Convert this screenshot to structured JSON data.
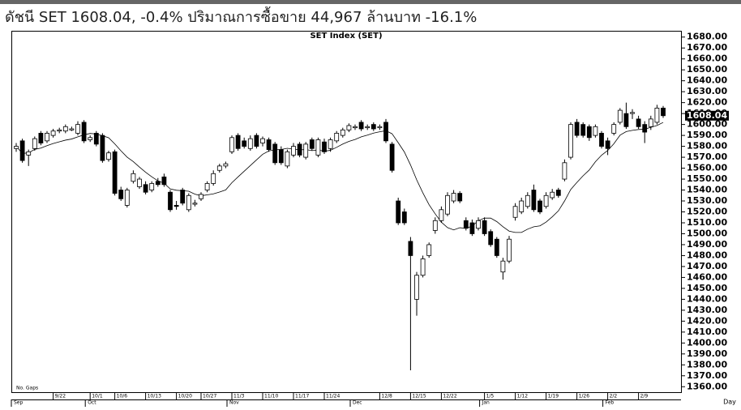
{
  "header": "ดัชนี SET 1608.04, -0.4%   ปริมาณการซื้อขาย 44,967 ล้านบาท -16.1%",
  "chart_data": {
    "type": "candlestick",
    "title": "SET Index (SET)",
    "ylim": [
      1355,
      1685
    ],
    "yticks": [
      {
        "value": 1680,
        "label": "1680.00"
      },
      {
        "value": 1670,
        "label": "1670.00"
      },
      {
        "value": 1660,
        "label": "1660.00"
      },
      {
        "value": 1650,
        "label": "1650.00"
      },
      {
        "value": 1640,
        "label": "1640.00"
      },
      {
        "value": 1630,
        "label": "1630.00"
      },
      {
        "value": 1620,
        "label": "1620.00"
      },
      {
        "value": 1610,
        "label": "1610.00"
      },
      {
        "value": 1600,
        "label": "1600.00"
      },
      {
        "value": 1590,
        "label": "1590.00"
      },
      {
        "value": 1580,
        "label": "1580.00"
      },
      {
        "value": 1570,
        "label": "1570.00"
      },
      {
        "value": 1560,
        "label": "1560.00"
      },
      {
        "value": 1550,
        "label": "1550.00"
      },
      {
        "value": 1540,
        "label": "1540.00"
      },
      {
        "value": 1530,
        "label": "1530.00"
      },
      {
        "value": 1520,
        "label": "1520.00"
      },
      {
        "value": 1510,
        "label": "1510.00"
      },
      {
        "value": 1500,
        "label": "1500.00"
      },
      {
        "value": 1490,
        "label": "1490.00"
      },
      {
        "value": 1480,
        "label": "1480.00"
      },
      {
        "value": 1470,
        "label": "1470.00"
      },
      {
        "value": 1460,
        "label": "1460.00"
      },
      {
        "value": 1450,
        "label": "1450.00"
      },
      {
        "value": 1440,
        "label": "1440.00"
      },
      {
        "value": 1430,
        "label": "1430.00"
      },
      {
        "value": 1420,
        "label": "1420.00"
      },
      {
        "value": 1410,
        "label": "1410.00"
      },
      {
        "value": 1400,
        "label": "1400.00"
      },
      {
        "value": 1390,
        "label": "1390.00"
      },
      {
        "value": 1380,
        "label": "1380.00"
      },
      {
        "value": 1370,
        "label": "1370.00"
      },
      {
        "value": 1360,
        "label": "1360.00"
      }
    ],
    "last": {
      "value": 1608.04,
      "label": "1608.04"
    },
    "date_ticks": [
      {
        "label": "9/22",
        "candle": 6
      },
      {
        "label": "10/1",
        "candle": 12
      },
      {
        "label": "10/6",
        "candle": 16
      },
      {
        "label": "10/13",
        "candle": 21
      },
      {
        "label": "10/20",
        "candle": 26
      },
      {
        "label": "10/27",
        "candle": 30
      },
      {
        "label": "11/3",
        "candle": 35
      },
      {
        "label": "11/10",
        "candle": 40
      },
      {
        "label": "11/17",
        "candle": 45
      },
      {
        "label": "11/24",
        "candle": 50
      },
      {
        "label": "12/8",
        "candle": 59
      },
      {
        "label": "12/15",
        "candle": 64
      },
      {
        "label": "12/22",
        "candle": 69
      },
      {
        "label": "1/5",
        "candle": 76
      },
      {
        "label": "1/12",
        "candle": 81
      },
      {
        "label": "1/19",
        "candle": 86
      },
      {
        "label": "1/26",
        "candle": 91
      },
      {
        "label": "2/2",
        "candle": 96
      },
      {
        "label": "2/9",
        "candle": 101
      }
    ],
    "month_ticks": [
      {
        "label": "Sep",
        "candle": 0
      },
      {
        "label": "Oct",
        "candle": 12
      },
      {
        "label": "Nov",
        "candle": 35
      },
      {
        "label": "Dec",
        "candle": 55
      },
      {
        "label": "Jan",
        "candle": 76
      },
      {
        "label": "Feb",
        "candle": 96
      }
    ],
    "x_label": "Day",
    "note": "No. Gaps",
    "open": [
      1578,
      1585,
      1572,
      1578,
      1592,
      1585,
      1590,
      1594,
      1594,
      1595,
      1592,
      1602,
      1586,
      1592,
      1590,
      1568,
      1575,
      1540,
      1526,
      1548,
      1543,
      1545,
      1540,
      1548,
      1552,
      1538,
      1526,
      1540,
      1522,
      1527,
      1532,
      1540,
      1546,
      1558,
      1562,
      1575,
      1590,
      1585,
      1578,
      1590,
      1583,
      1586,
      1582,
      1577,
      1562,
      1572,
      1582,
      1570,
      1586,
      1572,
      1584,
      1578,
      1585,
      1590,
      1595,
      1597,
      1602,
      1597,
      1600,
      1597,
      1602,
      1582,
      1530,
      1520,
      1493,
      1440,
      1462,
      1480,
      1503,
      1512,
      1518,
      1530,
      1537,
      1512,
      1510,
      1505,
      1512,
      1502,
      1495,
      1465,
      1475,
      1515,
      1520,
      1525,
      1540,
      1530,
      1525,
      1533,
      1540,
      1550,
      1570,
      1602,
      1600,
      1598,
      1590,
      1592,
      1585,
      1592,
      1602,
      1610,
      1610,
      1605,
      1600,
      1598,
      1602,
      1615
    ],
    "high": [
      1583,
      1587,
      1577,
      1589,
      1594,
      1594,
      1596,
      1597,
      1600,
      1598,
      1603,
      1604,
      1590,
      1594,
      1592,
      1576,
      1577,
      1543,
      1542,
      1558,
      1552,
      1548,
      1548,
      1551,
      1555,
      1540,
      1530,
      1542,
      1537,
      1531,
      1538,
      1548,
      1558,
      1564,
      1566,
      1590,
      1592,
      1588,
      1590,
      1592,
      1589,
      1588,
      1584,
      1580,
      1577,
      1583,
      1584,
      1584,
      1588,
      1588,
      1587,
      1588,
      1594,
      1597,
      1601,
      1600,
      1604,
      1600,
      1602,
      1600,
      1605,
      1584,
      1533,
      1523,
      1497,
      1465,
      1480,
      1492,
      1515,
      1525,
      1538,
      1540,
      1539,
      1515,
      1513,
      1515,
      1515,
      1504,
      1497,
      1478,
      1498,
      1528,
      1533,
      1538,
      1545,
      1532,
      1538,
      1541,
      1542,
      1568,
      1602,
      1605,
      1602,
      1600,
      1600,
      1594,
      1588,
      1602,
      1615,
      1620,
      1614,
      1608,
      1603,
      1608,
      1618,
      1617
    ],
    "low": [
      1575,
      1565,
      1562,
      1576,
      1581,
      1583,
      1588,
      1592,
      1592,
      1594,
      1590,
      1583,
      1584,
      1580,
      1565,
      1566,
      1535,
      1530,
      1524,
      1546,
      1541,
      1536,
      1538,
      1543,
      1543,
      1520,
      1522,
      1526,
      1520,
      1525,
      1530,
      1538,
      1544,
      1556,
      1560,
      1573,
      1576,
      1578,
      1576,
      1578,
      1580,
      1575,
      1563,
      1563,
      1560,
      1570,
      1570,
      1568,
      1576,
      1570,
      1573,
      1575,
      1583,
      1588,
      1593,
      1595,
      1594,
      1595,
      1594,
      1595,
      1583,
      1556,
      1508,
      1508,
      1375,
      1425,
      1460,
      1478,
      1500,
      1510,
      1516,
      1528,
      1528,
      1503,
      1498,
      1503,
      1498,
      1488,
      1478,
      1458,
      1473,
      1512,
      1518,
      1523,
      1520,
      1518,
      1523,
      1531,
      1533,
      1548,
      1568,
      1588,
      1588,
      1585,
      1588,
      1578,
      1572,
      1590,
      1600,
      1596,
      1605,
      1596,
      1583,
      1595,
      1600,
      1606
    ],
    "close": [
      1580,
      1567,
      1575,
      1587,
      1583,
      1592,
      1594,
      1595,
      1598,
      1596,
      1600,
      1585,
      1588,
      1582,
      1567,
      1574,
      1537,
      1532,
      1540,
      1555,
      1550,
      1538,
      1546,
      1545,
      1545,
      1522,
      1525,
      1528,
      1535,
      1528,
      1536,
      1546,
      1555,
      1562,
      1564,
      1588,
      1578,
      1580,
      1587,
      1580,
      1587,
      1577,
      1565,
      1565,
      1575,
      1580,
      1572,
      1582,
      1578,
      1586,
      1575,
      1586,
      1592,
      1595,
      1599,
      1598,
      1596,
      1598,
      1596,
      1598,
      1585,
      1558,
      1510,
      1510,
      1480,
      1462,
      1477,
      1490,
      1512,
      1522,
      1535,
      1537,
      1530,
      1505,
      1500,
      1512,
      1500,
      1490,
      1480,
      1475,
      1495,
      1525,
      1530,
      1535,
      1522,
      1520,
      1535,
      1538,
      1535,
      1565,
      1600,
      1590,
      1590,
      1588,
      1598,
      1580,
      1578,
      1600,
      1613,
      1598,
      1611,
      1598,
      1593,
      1605,
      1615,
      1608.04
    ]
  }
}
